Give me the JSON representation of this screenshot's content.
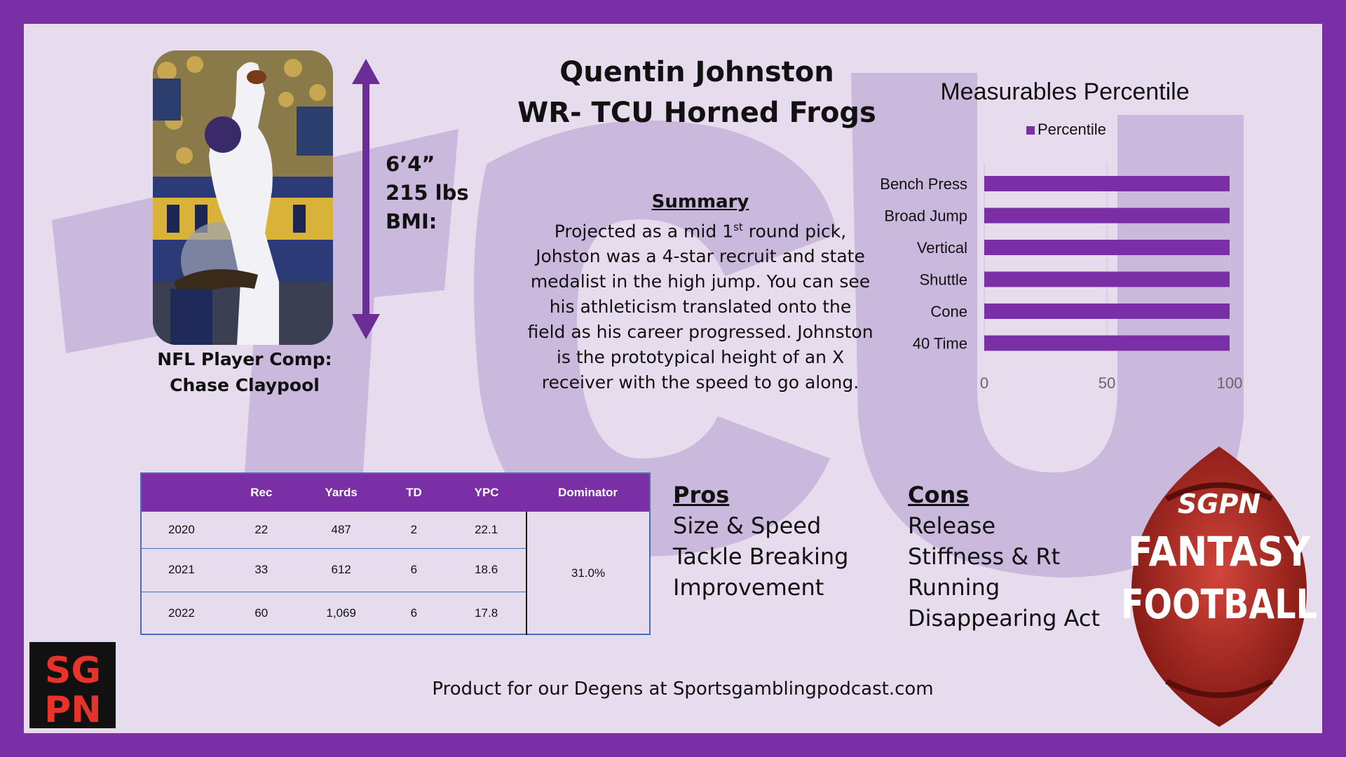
{
  "title": {
    "line1": "Quentin Johnston",
    "line2": "WR- TCU Horned Frogs"
  },
  "player_comp": {
    "line1": "NFL Player Comp:",
    "line2": "Chase Claypool"
  },
  "measurements": {
    "height": "6’4”",
    "weight": "215 lbs",
    "bmi": "BMI:"
  },
  "summary": {
    "heading": "Summary",
    "line1": "Projected as a mid 1",
    "line1_sup": "st",
    "line1_end": " round pick,",
    "line2": "Johston was a 4-star recruit and state",
    "line3": "medalist in the high jump. You can see",
    "line4": "his athleticism translated onto the",
    "line5": "field as his career progressed. Johnston",
    "line6": "is the prototypical height of an X",
    "line7": "receiver with the speed to go along."
  },
  "chart_data": {
    "type": "bar",
    "title": "Measurables Percentile",
    "series": [
      {
        "name": "Percentile",
        "values": [
          100,
          100,
          100,
          100,
          100,
          100
        ]
      }
    ],
    "categories": [
      "Bench Press",
      "Broad Jump",
      "Vertical",
      "Shuttle",
      "Cone",
      "40 Time"
    ],
    "xlim": [
      0,
      100
    ],
    "ticks": [
      "0",
      "50",
      "100"
    ],
    "legend": "top",
    "color": "#7b2fa6"
  },
  "stats_table": {
    "headers": [
      "",
      "Rec",
      "Yards",
      "TD",
      "YPC",
      "Dominator"
    ],
    "rows": [
      [
        "2020",
        "22",
        "487",
        "2",
        "22.1"
      ],
      [
        "2021",
        "33",
        "612",
        "6",
        "18.6"
      ],
      [
        "2022",
        "60",
        "1,069",
        "6",
        "17.8"
      ]
    ],
    "dominator": "31.0%"
  },
  "pros": {
    "heading": "Pros",
    "items": [
      "Size & Speed",
      "Tackle Breaking",
      "Improvement"
    ]
  },
  "cons": {
    "heading": "Cons",
    "items": [
      "Release",
      "Stiffness & Rt",
      "Running",
      "Disappearing Act"
    ]
  },
  "logos": {
    "sgpn": "SGPN",
    "fantasy_top": "SGPN",
    "fantasy_line1": "FANTASY",
    "fantasy_line2": "FOOTBALL"
  },
  "footer": "Product for our Degens at Sportsgamblingpodcast.com",
  "colors": {
    "purple": "#7b2fa6",
    "background": "#e6dcee",
    "watermark": "#c9b6dc",
    "red": "#b3261e"
  }
}
